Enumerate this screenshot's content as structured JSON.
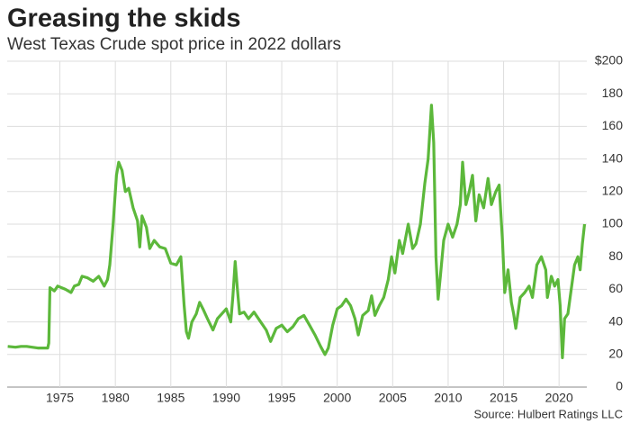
{
  "chart_data": {
    "type": "line",
    "title": "Greasing the skids",
    "subtitle": "West Texas Crude spot price in 2022 dollars",
    "source": "Source: Hulbert Ratings LLC",
    "xlim": [
      1970.25,
      2022.5
    ],
    "xticks": [
      1975,
      1980,
      1985,
      1990,
      1995,
      2000,
      2005,
      2010,
      2015,
      2020
    ],
    "ylim": [
      0,
      200
    ],
    "yticks": [
      0,
      20,
      40,
      60,
      80,
      100,
      120,
      140,
      160,
      180,
      {
        "value": 200,
        "label": "$200"
      }
    ],
    "grid": true,
    "x": [
      1970.3,
      1971,
      1971.5,
      1972,
      1972.5,
      1973,
      1973.5,
      1973.9,
      1974,
      1974.1,
      1974.5,
      1974.8,
      1975.5,
      1976,
      1976.3,
      1976.7,
      1977,
      1977.5,
      1978,
      1978.5,
      1979,
      1979.3,
      1979.5,
      1979.8,
      1980.1,
      1980.3,
      1980.6,
      1980.9,
      1981.2,
      1981.6,
      1982,
      1982.2,
      1982.4,
      1982.8,
      1983.1,
      1983.5,
      1984,
      1984.5,
      1985,
      1985.5,
      1985.9,
      1986.2,
      1986.4,
      1986.6,
      1986.9,
      1987.3,
      1987.6,
      1987.9,
      1988.3,
      1988.8,
      1989.2,
      1989.6,
      1990,
      1990.4,
      1990.6,
      1990.8,
      1991,
      1991.2,
      1991.6,
      1992,
      1992.5,
      1993,
      1993.6,
      1994,
      1994.5,
      1995,
      1995.5,
      1996,
      1996.5,
      1997,
      1997.5,
      1998,
      1998.5,
      1998.9,
      1999.2,
      1999.6,
      2000,
      2000.4,
      2000.8,
      2001.2,
      2001.6,
      2001.9,
      2002.3,
      2002.8,
      2003.1,
      2003.4,
      2003.8,
      2004.2,
      2004.6,
      2004.9,
      2005.2,
      2005.6,
      2005.9,
      2006.4,
      2006.8,
      2007.1,
      2007.5,
      2007.9,
      2008.2,
      2008.5,
      2008.7,
      2008.9,
      2009.1,
      2009.3,
      2009.6,
      2010,
      2010.4,
      2010.8,
      2011.1,
      2011.3,
      2011.6,
      2011.9,
      2012.2,
      2012.5,
      2012.8,
      2013.2,
      2013.6,
      2013.9,
      2014.3,
      2014.6,
      2014.9,
      2015.1,
      2015.4,
      2015.7,
      2015.9,
      2016.1,
      2016.5,
      2016.9,
      2017.3,
      2017.6,
      2018,
      2018.4,
      2018.8,
      2018.95,
      2019.3,
      2019.6,
      2019.9,
      2020.1,
      2020.3,
      2020.5,
      2020.8,
      2021.1,
      2021.4,
      2021.7,
      2021.9,
      2022.1,
      2022.3
    ],
    "series": [
      {
        "name": "West Texas Crude",
        "color": "#5cb83b",
        "values": [
          25,
          24.5,
          25,
          25,
          24.5,
          24,
          24,
          24,
          27,
          61,
          59,
          62,
          60,
          58,
          62,
          63,
          68,
          67,
          65,
          68,
          62,
          66,
          75,
          100,
          130,
          138,
          133,
          120,
          122,
          110,
          102,
          86,
          105,
          98,
          85,
          90,
          86,
          85,
          76,
          75,
          80,
          50,
          34,
          30,
          40,
          45,
          52,
          48,
          42,
          35,
          42,
          45,
          48,
          40,
          56,
          77,
          60,
          45,
          46,
          42,
          46,
          41,
          35,
          28,
          36,
          38,
          34,
          37,
          42,
          44,
          38,
          32,
          25,
          20,
          24,
          38,
          48,
          50,
          54,
          50,
          42,
          32,
          44,
          47,
          56,
          44,
          50,
          55,
          66,
          80,
          70,
          90,
          82,
          100,
          85,
          88,
          100,
          125,
          140,
          173,
          150,
          80,
          54,
          68,
          90,
          100,
          92,
          100,
          112,
          138,
          112,
          120,
          130,
          102,
          118,
          110,
          128,
          112,
          120,
          124,
          90,
          58,
          72,
          52,
          45,
          36,
          55,
          58,
          62,
          55,
          75,
          80,
          72,
          55,
          68,
          62,
          66,
          50,
          18,
          42,
          45,
          60,
          75,
          80,
          72,
          88,
          100
        ]
      }
    ]
  }
}
